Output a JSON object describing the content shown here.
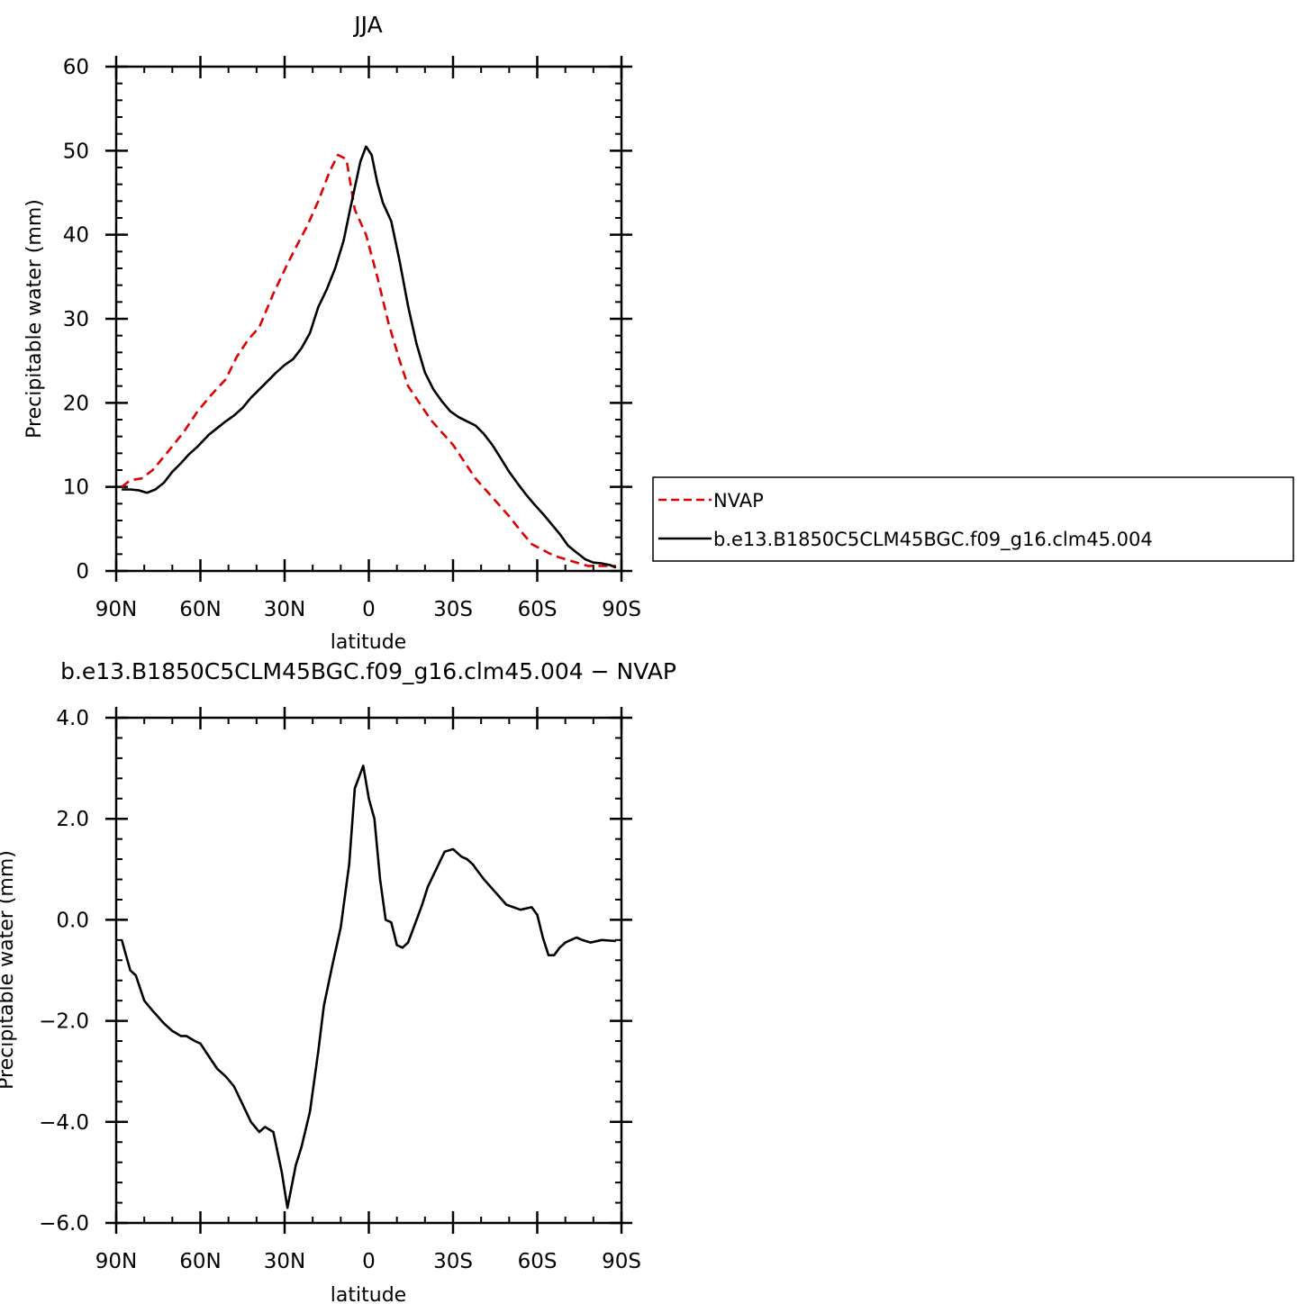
{
  "chart_data": [
    {
      "type": "line",
      "title": "JJA",
      "xlabel": "latitude",
      "ylabel": "Precipitable water (mm)",
      "xlim": [
        90,
        -90
      ],
      "ylim": [
        0,
        60
      ],
      "x_ticks": [
        90,
        60,
        30,
        0,
        -30,
        -60,
        -90
      ],
      "x_tick_labels": [
        "90N",
        "60N",
        "30N",
        "0",
        "30S",
        "60S",
        "90S"
      ],
      "y_ticks": [
        0,
        10,
        20,
        30,
        40,
        50,
        60
      ],
      "y_tick_labels": [
        "0",
        "10",
        "20",
        "30",
        "40",
        "50",
        "60"
      ],
      "legend": {
        "position": "right",
        "entries": [
          "NVAP",
          "b.e13.B1850C5CLM45BGC.f09_g16.clm45.004"
        ]
      },
      "series": [
        {
          "name": "NVAP",
          "color": "#e00000",
          "dash": "dashed",
          "x": [
            88,
            85,
            81,
            77,
            72,
            66,
            61,
            56,
            51,
            47,
            43,
            39,
            34,
            29,
            26,
            22,
            18,
            14,
            11,
            8,
            5,
            1,
            -3,
            -7,
            -11,
            -14,
            -18,
            -22,
            -26,
            -30,
            -34,
            -38,
            -42,
            -46,
            -50,
            -54,
            -58,
            -62,
            -66,
            -70,
            -74,
            -78,
            -82,
            -86,
            -88
          ],
          "y": [
            10.0,
            10.8,
            11.0,
            12.0,
            14.0,
            16.5,
            19.0,
            21.0,
            22.8,
            25.5,
            27.5,
            29.0,
            33.0,
            36.5,
            38.5,
            41.0,
            44.0,
            47.5,
            49.5,
            49.0,
            43.0,
            40.0,
            35.0,
            29.5,
            25.0,
            22.0,
            20.0,
            18.0,
            16.5,
            15.0,
            13.0,
            11.0,
            9.5,
            8.0,
            6.5,
            4.8,
            3.2,
            2.5,
            1.8,
            1.4,
            1.0,
            0.6,
            0.6,
            0.6,
            0.6
          ]
        },
        {
          "name": "b.e13.B1850C5CLM45BGC.f09_g16.clm45.004",
          "color": "#000000",
          "dash": "solid",
          "x": [
            88,
            85,
            82,
            79,
            76,
            73,
            70,
            67,
            64,
            61,
            57,
            54,
            51,
            48,
            45,
            42,
            39,
            36,
            33,
            30,
            27,
            24,
            21,
            18,
            15,
            12,
            9,
            7,
            5,
            3,
            1,
            -1,
            -3,
            -5,
            -8,
            -11,
            -14,
            -17,
            -20,
            -23,
            -26,
            -29,
            -32,
            -35,
            -38,
            -41,
            -44,
            -47,
            -50,
            -53,
            -56,
            -59,
            -62,
            -65,
            -68,
            -71,
            -74,
            -77,
            -80,
            -83,
            -86,
            -88
          ],
          "y": [
            9.7,
            9.7,
            9.6,
            9.3,
            9.7,
            10.5,
            11.8,
            12.8,
            13.9,
            14.8,
            16.2,
            17.0,
            17.8,
            18.5,
            19.4,
            20.6,
            21.6,
            22.6,
            23.6,
            24.5,
            25.2,
            26.5,
            28.3,
            31.4,
            33.5,
            36.0,
            39.3,
            42.5,
            45.6,
            48.7,
            50.5,
            49.5,
            46.2,
            43.8,
            41.6,
            36.8,
            31.5,
            27.0,
            23.6,
            21.6,
            20.2,
            19.0,
            18.3,
            17.8,
            17.3,
            16.3,
            15.0,
            13.4,
            11.8,
            10.4,
            9.1,
            7.9,
            6.8,
            5.6,
            4.4,
            3.0,
            2.2,
            1.4,
            1.0,
            0.9,
            0.7,
            0.4
          ]
        }
      ]
    },
    {
      "type": "line",
      "title": "b.e13.B1850C5CLM45BGC.f09_g16.clm45.004 − NVAP",
      "xlabel": "latitude",
      "ylabel": "Precipitable water (mm)",
      "xlim": [
        90,
        -90
      ],
      "ylim": [
        -6,
        4
      ],
      "x_ticks": [
        90,
        60,
        30,
        0,
        -30,
        -60,
        -90
      ],
      "x_tick_labels": [
        "90N",
        "60N",
        "30N",
        "0",
        "30S",
        "60S",
        "90S"
      ],
      "y_ticks": [
        -6,
        -4,
        -2,
        0,
        2,
        4
      ],
      "y_tick_labels": [
        "−6.0",
        "−4.0",
        "−2.0",
        "0.0",
        "2.0",
        "4.0"
      ],
      "series": [
        {
          "color": "#000000",
          "dash": "solid",
          "x": [
            88,
            85,
            83,
            80,
            77,
            73,
            70,
            67,
            65,
            62,
            60,
            57,
            54,
            51,
            48,
            45,
            42,
            39,
            37,
            34,
            31,
            29,
            26,
            24,
            21,
            18,
            16,
            13,
            10,
            7,
            5,
            2,
            0,
            -2,
            -4,
            -6,
            -8,
            -10,
            -12,
            -14,
            -16,
            -19,
            -21,
            -24,
            -27,
            -30,
            -33,
            -35,
            -37,
            -39,
            -41,
            -45,
            -49,
            -54,
            -58,
            -60,
            -62,
            -64,
            -66,
            -68,
            -70,
            -72,
            -74,
            -76,
            -79,
            -83,
            -88
          ],
          "y": [
            -0.4,
            -1.0,
            -1.1,
            -1.6,
            -1.8,
            -2.05,
            -2.2,
            -2.3,
            -2.3,
            -2.4,
            -2.45,
            -2.7,
            -2.95,
            -3.1,
            -3.3,
            -3.65,
            -4.0,
            -4.2,
            -4.1,
            -4.2,
            -5.0,
            -5.7,
            -4.85,
            -4.5,
            -3.8,
            -2.6,
            -1.7,
            -0.9,
            -0.15,
            1.1,
            2.6,
            3.05,
            2.4,
            2.0,
            0.8,
            0.0,
            -0.05,
            -0.5,
            -0.55,
            -0.45,
            -0.15,
            0.3,
            0.65,
            1.0,
            1.35,
            1.4,
            1.25,
            1.2,
            1.1,
            0.95,
            0.8,
            0.55,
            0.3,
            0.2,
            0.25,
            0.1,
            -0.35,
            -0.7,
            -0.7,
            -0.55,
            -0.45,
            -0.4,
            -0.35,
            -0.4,
            -0.45,
            -0.4,
            -0.42
          ]
        }
      ]
    }
  ]
}
